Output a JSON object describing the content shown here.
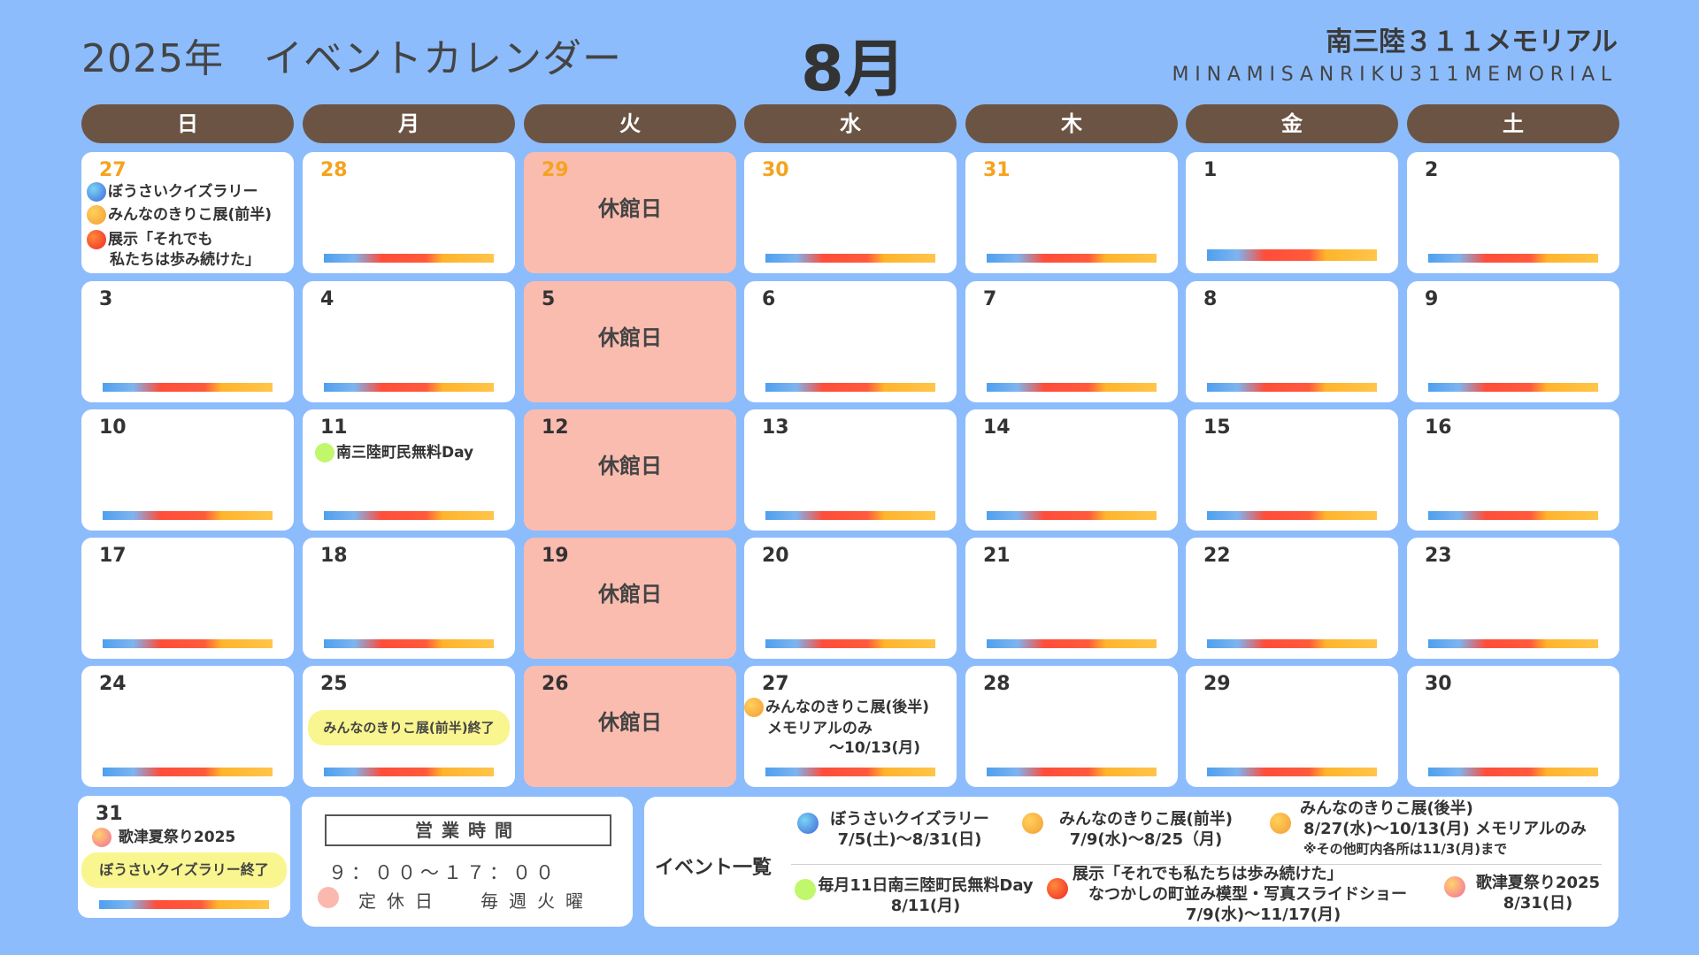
{
  "header": {
    "title": "2025年　イベントカレンダー",
    "month": "8月",
    "venue": "南三陸３１１メモリアル",
    "venue_en": "MINAMISANRIKU311MEMORIAL"
  },
  "weekdays": [
    "日",
    "月",
    "火",
    "水",
    "木",
    "金",
    "土"
  ],
  "closed_label": "休館日",
  "days": {
    "d27a": "27",
    "d28a": "28",
    "d29a": "29",
    "d30a": "30",
    "d31a": "31",
    "d1": "1",
    "d2": "2",
    "d3": "3",
    "d4": "4",
    "d5": "5",
    "d6": "6",
    "d7": "7",
    "d8": "8",
    "d9": "9",
    "d10": "10",
    "d11": "11",
    "d12": "12",
    "d13": "13",
    "d14": "14",
    "d15": "15",
    "d16": "16",
    "d17": "17",
    "d18": "18",
    "d19": "19",
    "d20": "20",
    "d21": "21",
    "d22": "22",
    "d23": "23",
    "d24": "24",
    "d25": "25",
    "d26": "26",
    "d27": "27",
    "d28": "28",
    "d29": "29",
    "d30": "30",
    "d31": "31"
  },
  "cell_events": {
    "jul27_quiz": "ぼうさいクイズラリー",
    "jul27_kiriko": "みんなのきりこ展(前半)",
    "jul27_exhibit_1": "展示「それでも",
    "jul27_exhibit_2": "私たちは歩み続けた」",
    "aug11": "南三陸町民無料Day",
    "aug25_pill": "みんなのきりこ展(前半)終了",
    "aug27_1": "みんなのきりこ展(後半)",
    "aug27_2": "メモリアルのみ",
    "aug27_3": "〜10/13(月)",
    "aug31_event": "歌津夏祭り2025",
    "aug31_pill": "ぼうさいクイズラリー終了"
  },
  "hours": {
    "title": "営業時間",
    "time": "９：００〜１７：００",
    "closed_label": "定休日",
    "closed_value": "毎週火曜"
  },
  "event_list": {
    "title": "イベント一覧",
    "items": [
      {
        "line1": "ぼうさいクイズラリー",
        "line2": "7/5(土)〜8/31(日)",
        "color": "blue"
      },
      {
        "line1": "みんなのきりこ展(前半)",
        "line2": "7/9(水)〜8/25（月)",
        "color": "orange"
      },
      {
        "line1": "みんなのきりこ展(後半)",
        "line2": "8/27(水)〜10/13(月)  メモリアルのみ",
        "line3": "※その他町内各所は11/3(月)まで",
        "color": "orange"
      },
      {
        "line1": "毎月11日南三陸町民無料Day",
        "line2": "8/11(月)",
        "color": "green"
      },
      {
        "line1": "展示「それでも私たちは歩み続けた」",
        "line2": "なつかしの町並み模型・写真スライドショー",
        "line3": "7/9(水)〜11/17(月)",
        "color": "red"
      },
      {
        "line1": "歌津夏祭り2025",
        "line2": "8/31(日)",
        "color": "pink"
      }
    ]
  },
  "colors": {
    "background": "#8cbcfc",
    "header_bar": "#6b5444",
    "closed_cell": "#fbbcb0",
    "prev_month_number": "#f5a31f",
    "pill": "#f9f58f"
  }
}
